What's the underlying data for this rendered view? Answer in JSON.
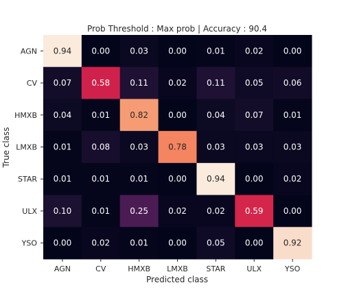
{
  "chart_data": {
    "type": "heatmap",
    "title": "Prob Threshold : Max prob | Accuracy : 90.4",
    "xlabel": "Predicted class",
    "ylabel": "True class",
    "x_categories": [
      "AGN",
      "CV",
      "HMXB",
      "LMXB",
      "STAR",
      "ULX",
      "YSO"
    ],
    "y_categories": [
      "AGN",
      "CV",
      "HMXB",
      "LMXB",
      "STAR",
      "ULX",
      "YSO"
    ],
    "values": [
      [
        0.94,
        0.0,
        0.03,
        0.0,
        0.01,
        0.02,
        0.0
      ],
      [
        0.07,
        0.58,
        0.11,
        0.02,
        0.11,
        0.05,
        0.06
      ],
      [
        0.04,
        0.01,
        0.82,
        0.0,
        0.04,
        0.07,
        0.01
      ],
      [
        0.01,
        0.08,
        0.03,
        0.78,
        0.03,
        0.03,
        0.03
      ],
      [
        0.01,
        0.01,
        0.01,
        0.0,
        0.94,
        0.0,
        0.02
      ],
      [
        0.1,
        0.01,
        0.25,
        0.02,
        0.02,
        0.59,
        0.0
      ],
      [
        0.0,
        0.02,
        0.01,
        0.0,
        0.05,
        0.0,
        0.92
      ]
    ],
    "value_labels": [
      [
        "0.94",
        "0.00",
        "0.03",
        "0.00",
        "0.01",
        "0.02",
        "0.00"
      ],
      [
        "0.07",
        "0.58",
        "0.11",
        "0.02",
        "0.11",
        "0.05",
        "0.06"
      ],
      [
        "0.04",
        "0.01",
        "0.82",
        "0.00",
        "0.04",
        "0.07",
        "0.01"
      ],
      [
        "0.01",
        "0.08",
        "0.03",
        "0.78",
        "0.03",
        "0.03",
        "0.03"
      ],
      [
        "0.01",
        "0.01",
        "0.01",
        "0.00",
        "0.94",
        "0.00",
        "0.02"
      ],
      [
        "0.10",
        "0.01",
        "0.25",
        "0.02",
        "0.02",
        "0.59",
        "0.00"
      ],
      [
        "0.00",
        "0.02",
        "0.01",
        "0.00",
        "0.05",
        "0.00",
        "0.92"
      ]
    ],
    "value_range": [
      0,
      0.94
    ],
    "colormap": "rocket",
    "annotate": true
  }
}
